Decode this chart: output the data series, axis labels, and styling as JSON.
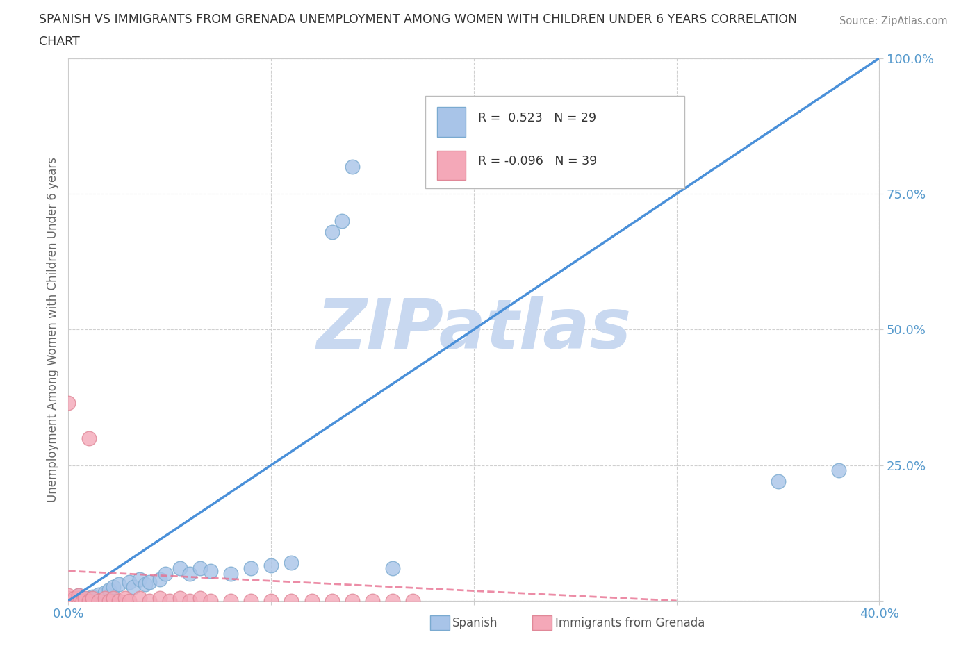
{
  "title_line1": "SPANISH VS IMMIGRANTS FROM GRENADA UNEMPLOYMENT AMONG WOMEN WITH CHILDREN UNDER 6 YEARS CORRELATION",
  "title_line2": "CHART",
  "source": "Source: ZipAtlas.com",
  "ylabel": "Unemployment Among Women with Children Under 6 years",
  "xlim": [
    0.0,
    0.4
  ],
  "ylim": [
    0.0,
    1.0
  ],
  "xticks": [
    0.0,
    0.1,
    0.2,
    0.3,
    0.4
  ],
  "yticks": [
    0.0,
    0.25,
    0.5,
    0.75,
    1.0
  ],
  "background_color": "#ffffff",
  "grid_color": "#d0d0d0",
  "watermark": "ZIPatlas",
  "watermark_color": "#c8d8f0",
  "legend_R1": "R =  0.523",
  "legend_N1": "N = 29",
  "legend_R2": "R = -0.096",
  "legend_N2": "N = 39",
  "spanish_color": "#a8c4e8",
  "grenada_color": "#f4a8b8",
  "spanish_edge_color": "#7aaad0",
  "grenada_edge_color": "#e08898",
  "regression_blue": "#4a90d9",
  "regression_pink": "#e87090",
  "tick_color": "#5599cc",
  "spine_color": "#cccccc",
  "spanish_x": [
    0.005,
    0.01,
    0.012,
    0.015,
    0.018,
    0.02,
    0.022,
    0.025,
    0.03,
    0.032,
    0.035,
    0.038,
    0.04,
    0.045,
    0.048,
    0.055,
    0.06,
    0.065,
    0.07,
    0.08,
    0.09,
    0.1,
    0.11,
    0.13,
    0.135,
    0.14,
    0.16,
    0.35,
    0.38
  ],
  "spanish_y": [
    0.01,
    0.005,
    0.008,
    0.012,
    0.015,
    0.02,
    0.025,
    0.03,
    0.035,
    0.025,
    0.04,
    0.03,
    0.035,
    0.04,
    0.05,
    0.06,
    0.05,
    0.06,
    0.055,
    0.05,
    0.06,
    0.065,
    0.07,
    0.68,
    0.7,
    0.8,
    0.06,
    0.22,
    0.24
  ],
  "grenada_x": [
    0.0,
    0.0,
    0.0,
    0.0,
    0.002,
    0.003,
    0.005,
    0.005,
    0.005,
    0.007,
    0.008,
    0.01,
    0.01,
    0.012,
    0.015,
    0.018,
    0.02,
    0.022,
    0.025,
    0.028,
    0.03,
    0.035,
    0.04,
    0.045,
    0.05,
    0.055,
    0.06,
    0.065,
    0.07,
    0.08,
    0.09,
    0.1,
    0.11,
    0.12,
    0.13,
    0.14,
    0.15,
    0.16,
    0.17
  ],
  "grenada_y": [
    0.0,
    0.005,
    0.01,
    0.365,
    0.0,
    0.005,
    0.0,
    0.005,
    0.01,
    0.0,
    0.005,
    0.0,
    0.3,
    0.005,
    0.0,
    0.005,
    0.0,
    0.005,
    0.0,
    0.005,
    0.0,
    0.005,
    0.0,
    0.005,
    0.0,
    0.005,
    0.0,
    0.005,
    0.0,
    0.0,
    0.0,
    0.0,
    0.0,
    0.0,
    0.0,
    0.0,
    0.0,
    0.0,
    0.0
  ],
  "blue_line_x": [
    0.0,
    0.4
  ],
  "blue_line_y": [
    0.0,
    1.0
  ],
  "pink_line_x": [
    0.0,
    0.3
  ],
  "pink_line_y": [
    0.055,
    0.0
  ]
}
